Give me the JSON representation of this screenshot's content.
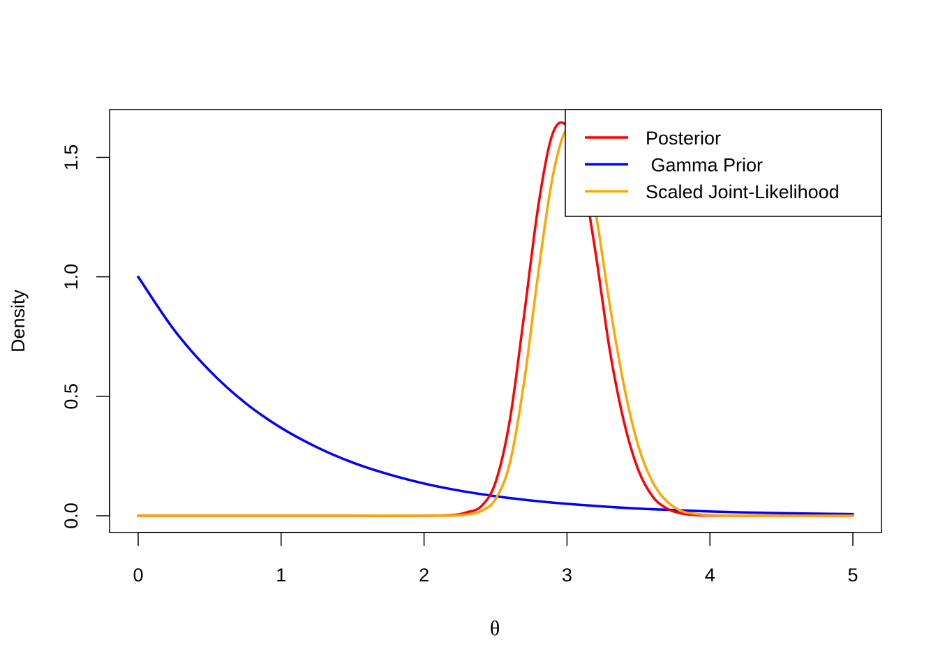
{
  "chart_data": {
    "type": "line",
    "xlabel": "θ",
    "ylabel": "Density",
    "xlim": [
      -0.2,
      5.2
    ],
    "ylim": [
      -0.07,
      1.7
    ],
    "x_ticks": [
      0,
      1,
      2,
      3,
      4,
      5
    ],
    "x_tick_labels": [
      "0",
      "1",
      "2",
      "3",
      "4",
      "5"
    ],
    "y_ticks": [
      0.0,
      0.5,
      1.0,
      1.5
    ],
    "y_tick_labels": [
      "0.0",
      "0.5",
      "1.0",
      "1.5"
    ],
    "legend_position": "top-right",
    "grid": false,
    "series": [
      {
        "name": "Posterior",
        "color": "#ff0000",
        "x": [
          0,
          0.5,
          1,
          1.5,
          2,
          2.2,
          2.3,
          2.4,
          2.5,
          2.6,
          2.7,
          2.8,
          2.9,
          3.0,
          3.1,
          3.2,
          3.3,
          3.4,
          3.5,
          3.6,
          3.7,
          3.8,
          3.9,
          4.0,
          4.2,
          4.5,
          5.0
        ],
        "y": [
          0,
          0,
          0,
          0,
          0,
          0.003,
          0.015,
          0.04,
          0.14,
          0.4,
          0.84,
          1.3,
          1.6,
          1.63,
          1.45,
          1.1,
          0.69,
          0.39,
          0.19,
          0.08,
          0.03,
          0.01,
          0.003,
          0.001,
          0,
          0,
          0
        ]
      },
      {
        "name": " Gamma Prior",
        "color": "#0000ff",
        "x": [
          0,
          0.25,
          0.5,
          0.75,
          1.0,
          1.25,
          1.5,
          1.75,
          2.0,
          2.25,
          2.5,
          2.75,
          3.0,
          3.25,
          3.5,
          3.75,
          4.0,
          4.25,
          4.5,
          4.75,
          5.0
        ],
        "y": [
          1.0,
          0.779,
          0.607,
          0.472,
          0.368,
          0.287,
          0.223,
          0.174,
          0.135,
          0.105,
          0.082,
          0.064,
          0.05,
          0.039,
          0.03,
          0.024,
          0.018,
          0.014,
          0.011,
          0.009,
          0.007
        ]
      },
      {
        "name": "Scaled Joint-Likelihood",
        "color": "#ffa500",
        "x": [
          0,
          0.5,
          1,
          1.5,
          2,
          2.2,
          2.3,
          2.4,
          2.5,
          2.6,
          2.7,
          2.8,
          2.9,
          3.0,
          3.1,
          3.2,
          3.3,
          3.4,
          3.5,
          3.6,
          3.7,
          3.8,
          3.9,
          4.0,
          4.2,
          4.5,
          5.0
        ],
        "y": [
          0,
          0,
          0,
          0,
          0,
          0.001,
          0.006,
          0.02,
          0.07,
          0.22,
          0.56,
          1.02,
          1.42,
          1.62,
          1.55,
          1.27,
          0.88,
          0.54,
          0.29,
          0.14,
          0.06,
          0.02,
          0.008,
          0.003,
          0,
          0,
          0
        ]
      }
    ]
  }
}
